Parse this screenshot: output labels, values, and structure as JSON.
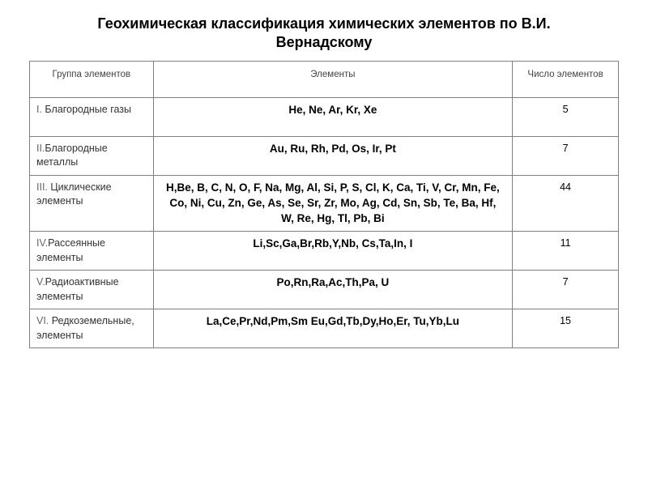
{
  "title_line1": "Геохимическая классификация химических элементов по В.И.",
  "title_line2": "Вернадскому",
  "table": {
    "columns": [
      {
        "label": "Группа элементов",
        "width_pct": 21,
        "align": "left"
      },
      {
        "label": "Элементы",
        "width_pct": 61,
        "align": "center"
      },
      {
        "label": "Число элементов",
        "width_pct": 18,
        "align": "center"
      }
    ],
    "border_color": "#808080",
    "header_bg": "#ffffff",
    "header_font_size_pt": 9,
    "body_font_size_pt": 10,
    "elements_font_weight": 700,
    "rows": [
      {
        "group_roman": "I.",
        "group_rest": " Благородные газы",
        "elements": "He, Ne, Ar, Kr, Xe",
        "count": "5",
        "tall": true
      },
      {
        "group_roman": "II.",
        "group_rest": "Благородные металлы",
        "elements": "Au, Ru, Rh, Pd, Os, Ir, Pt",
        "count": "7",
        "tall": false
      },
      {
        "group_roman": "III.",
        "group_rest": " Циклические элементы",
        "elements": "H,Be, B, C, N, O, F, Na, Mg, Al, Si, P, S, Cl, K, Ca, Ti, V, Cr, Mn, Fe, Co, Ni, Cu, Zn, Ge, As, Se, Sr, Zr, Mo, Ag, Cd, Sn, Sb, Te, Ba, Hf, W, Re, Hg, Tl, Pb, Bi",
        "count": "44",
        "tall": false
      },
      {
        "group_roman": "IV.",
        "group_rest": "Рассеянные элементы",
        "elements": "Li,Sc,Ga,Br,Rb,Y,Nb, Cs,Ta,In, I",
        "count": "11",
        "tall": false
      },
      {
        "group_roman": "V.",
        "group_rest": "Радиоактивные элементы",
        "elements": "Po,Rn,Ra,Ac,Th,Pa, U",
        "count": "7",
        "tall": false
      },
      {
        "group_roman": "VI.",
        "group_rest": " Редкоземельные, элементы",
        "elements": "La,Ce,Pr,Nd,Pm,Sm Eu,Gd,Tb,Dy,Ho,Er, Tu,Yb,Lu",
        "count": "15",
        "tall": false
      }
    ]
  }
}
